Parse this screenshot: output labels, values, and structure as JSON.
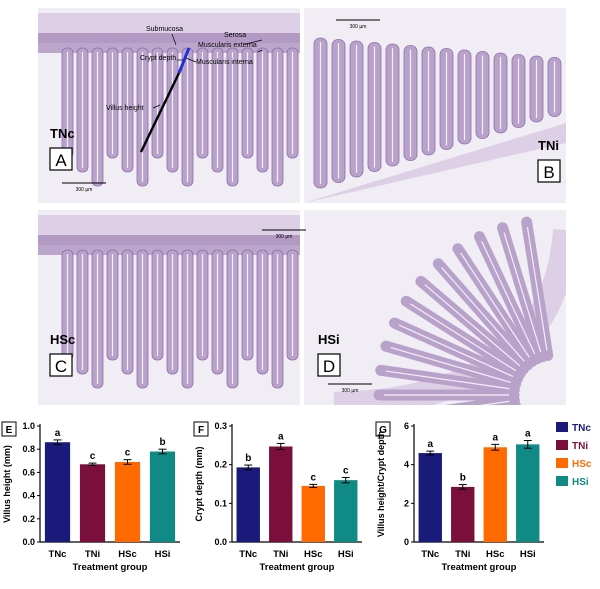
{
  "colors": {
    "tissue": "#b9a2ca",
    "tissue_light": "#ddd0e6",
    "tissue_dark": "#8e6ea9",
    "bg_panel": "#f1edf4",
    "crypt_line": "#1f2fd6",
    "villus_line": "#000000",
    "TNc": "#1a1a7a",
    "TNi": "#7b0f3b",
    "HSc": "#ff6a00",
    "HSi": "#0f8a85"
  },
  "histology": {
    "panels": [
      {
        "letter": "A",
        "group": "TNc",
        "scale": "300 µm"
      },
      {
        "letter": "B",
        "group": "TNi",
        "scale": "300 µm"
      },
      {
        "letter": "C",
        "group": "HSc",
        "scale": "300 µm"
      },
      {
        "letter": "D",
        "group": "HSi",
        "scale": "300 µm"
      }
    ],
    "annotations": {
      "submucosa": "Submucosa",
      "serosa": "Serosa",
      "muscularis_externa": "Muscularis externa",
      "muscularis_interna": "Muscularis interna",
      "crypt_depth": "Crypt depth",
      "villus_height": "Villus height"
    }
  },
  "legend": {
    "entries": [
      {
        "name": "TNc",
        "color": "#1a1a7a"
      },
      {
        "name": "TNi",
        "color": "#7b0f3b"
      },
      {
        "name": "HSc",
        "color": "#ff6a00"
      },
      {
        "name": "HSi",
        "color": "#0f8a85"
      }
    ]
  },
  "chart_data": [
    {
      "type": "bar",
      "panel": "E",
      "categories": [
        "TNc",
        "TNi",
        "HSc",
        "HSi"
      ],
      "values": [
        0.86,
        0.67,
        0.69,
        0.78
      ],
      "errors": [
        0.02,
        0.01,
        0.02,
        0.02
      ],
      "letters": [
        "a",
        "c",
        "c",
        "b"
      ],
      "xlabel": "Treatment group",
      "ylabel": "Villus height  (mm)",
      "ylim": [
        0.0,
        1.0
      ],
      "yticks": [
        "0.0",
        "0.2",
        "0.4",
        "0.6",
        "0.8",
        "1.0"
      ]
    },
    {
      "type": "bar",
      "panel": "F",
      "categories": [
        "TNc",
        "TNi",
        "HSc",
        "HSi"
      ],
      "values": [
        0.193,
        0.247,
        0.145,
        0.16
      ],
      "errors": [
        0.006,
        0.008,
        0.004,
        0.007
      ],
      "letters": [
        "b",
        "a",
        "c",
        "c"
      ],
      "xlabel": "Treatment group",
      "ylabel": "Crypt depth  (mm)",
      "ylim": [
        0.0,
        0.3
      ],
      "yticks": [
        "0.0",
        "0.1",
        "0.2",
        "0.3"
      ]
    },
    {
      "type": "bar",
      "panel": "G",
      "categories": [
        "TNc",
        "TNi",
        "HSc",
        "HSi"
      ],
      "values": [
        4.6,
        2.85,
        4.9,
        5.05
      ],
      "errors": [
        0.1,
        0.12,
        0.15,
        0.2
      ],
      "letters": [
        "a",
        "b",
        "a",
        "a"
      ],
      "xlabel": "Treatment group",
      "ylabel": "Villus height/Crypt depth",
      "ylim": [
        0,
        6
      ],
      "yticks": [
        "0",
        "2",
        "4",
        "6"
      ]
    }
  ]
}
